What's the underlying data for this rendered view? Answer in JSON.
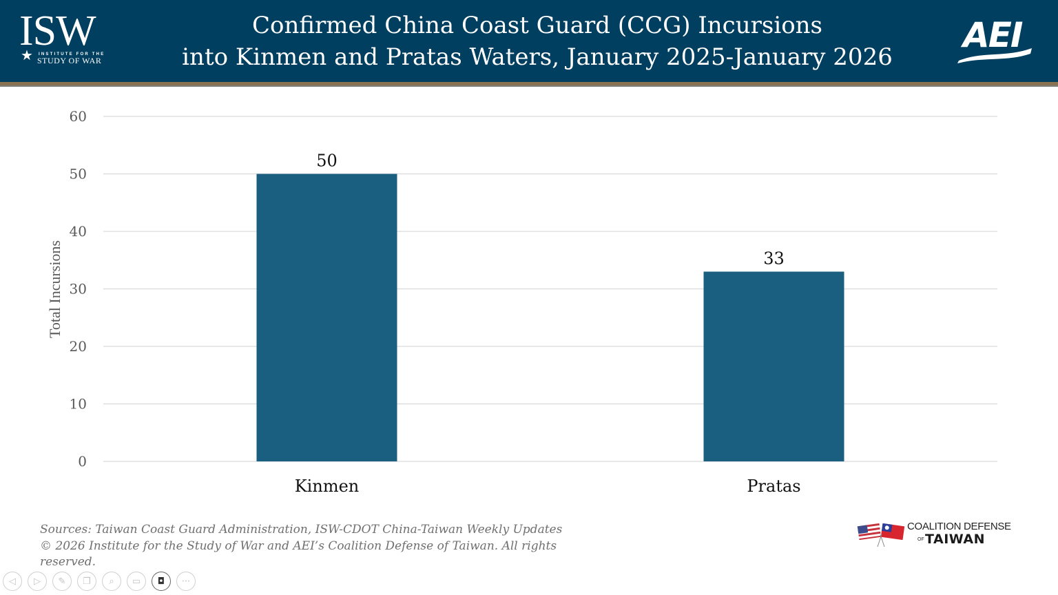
{
  "header": {
    "title_line1": "Confirmed China Coast Guard (CCG) Incursions",
    "title_line2": "into Kinmen and Pratas Waters, January 2025-January 2026",
    "left_logo": {
      "letters": "ISW",
      "sub1": "INSTITUTE FOR THE",
      "sub2": "STUDY OF WAR",
      "star": "★"
    },
    "right_logo": {
      "letters": "AEI"
    },
    "colors": {
      "background": "#003f5f",
      "gold_rule": "#8b7250"
    }
  },
  "chart_data": {
    "type": "bar",
    "title": "Confirmed China Coast Guard (CCG) Incursions into Kinmen and Pratas Waters, January 2025-January 2026",
    "categories": [
      "Kinmen",
      "Pratas"
    ],
    "values": [
      50,
      33
    ],
    "data_labels": [
      "50",
      "33"
    ],
    "xlabel": "",
    "ylabel": "Total Incursions",
    "ylim": [
      0,
      60
    ],
    "yticks": [
      0,
      10,
      20,
      30,
      40,
      50,
      60
    ],
    "ytick_labels": [
      "0",
      "10",
      "20",
      "30",
      "40",
      "50",
      "60"
    ],
    "grid": true,
    "legend": "none",
    "bar_color": "#1a5e80"
  },
  "footer": {
    "sources_line1": "Sources: Taiwan Coast Guard Administration, ISW-CDOT China-Taiwan Weekly Updates",
    "sources_line2": "© 2026 Institute for the Study of War and AEI’s Coalition Defense of Taiwan. All rights",
    "sources_line3": "reserved.",
    "partner_logo": {
      "line1": "COALITION DEFENSE",
      "of": "OF",
      "line2": "TAIWAN"
    }
  },
  "toolbar": {
    "buttons": [
      {
        "name": "previous",
        "glyph": "◁"
      },
      {
        "name": "next",
        "glyph": "▷"
      },
      {
        "name": "pen",
        "glyph": "✎"
      },
      {
        "name": "slides",
        "glyph": "❐"
      },
      {
        "name": "zoom",
        "glyph": "⌕"
      },
      {
        "name": "subtitles",
        "glyph": "▭"
      },
      {
        "name": "camera",
        "glyph": "◘"
      },
      {
        "name": "more",
        "glyph": "···"
      }
    ]
  }
}
